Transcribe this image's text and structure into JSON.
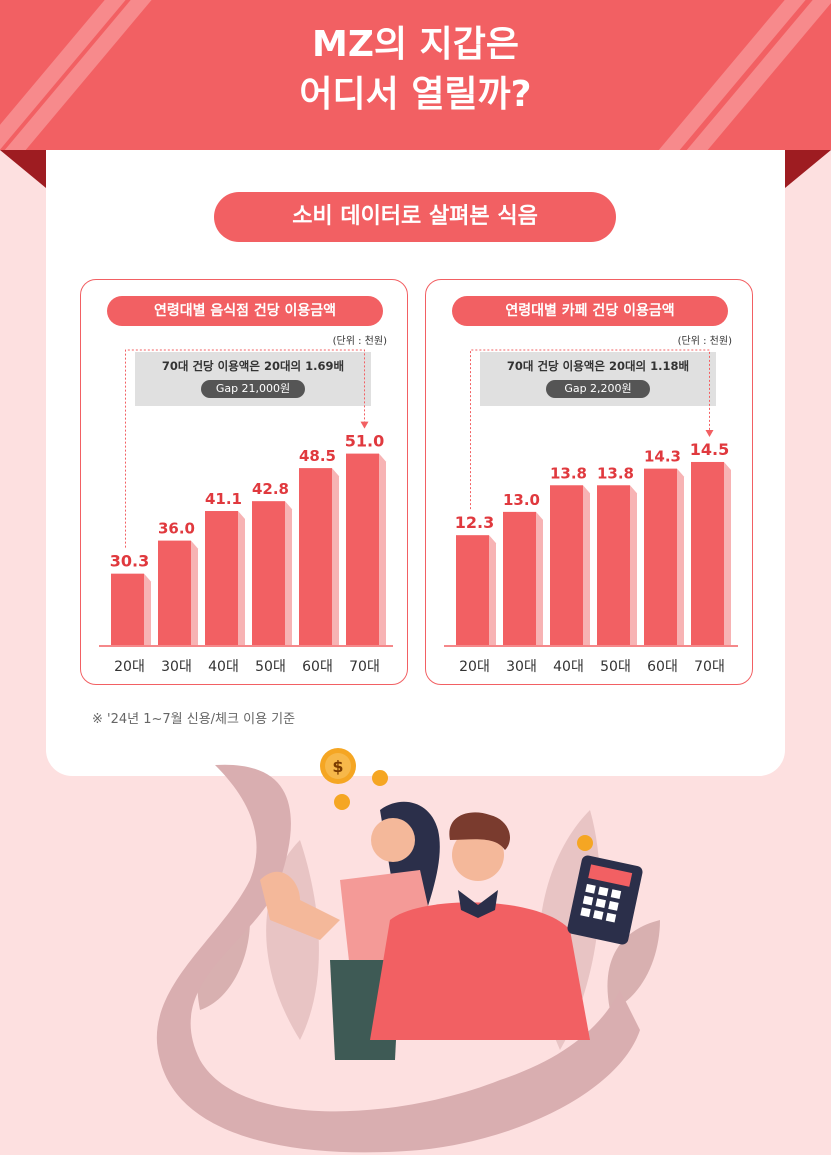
{
  "header": {
    "title_line1": "MZ의 지갑은",
    "title_line2": "어디서 열릴까?"
  },
  "subtitle": "소비 데이터로 살펴본 식음",
  "colors": {
    "primary": "#f26063",
    "dark_fold": "#9e1c21",
    "background": "#fde0e0",
    "label_red": "#e0393e"
  },
  "footnote": "※ '24년 1~7월 신용/체크 이용 기준",
  "chart_data": [
    {
      "type": "bar",
      "title": "연령대별 음식점 건당 이용금액",
      "unit": "(단위 : 천원)",
      "annotation": "70대 건당 이용액은 20대의 1.69배",
      "gap": "Gap 21,000원",
      "categories": [
        "20대",
        "30대",
        "40대",
        "50대",
        "60대",
        "70대"
      ],
      "values": [
        30.3,
        36.0,
        41.1,
        42.8,
        48.5,
        51.0
      ],
      "value_labels": [
        "30.3",
        "36.0",
        "41.1",
        "42.8",
        "48.5",
        "51.0"
      ],
      "highlight": [
        "20대",
        "70대"
      ]
    },
    {
      "type": "bar",
      "title": "연령대별 카페 건당 이용금액",
      "unit": "(단위 : 천원)",
      "annotation": "70대 건당 이용액은 20대의 1.18배",
      "gap": "Gap 2,200원",
      "categories": [
        "20대",
        "30대",
        "40대",
        "50대",
        "60대",
        "70대"
      ],
      "values": [
        12.3,
        13.0,
        13.8,
        13.8,
        14.3,
        14.5
      ],
      "value_labels": [
        "12.3",
        "13.0",
        "13.8",
        "13.8",
        "14.3",
        "14.5"
      ],
      "highlight": [
        "20대",
        "70대"
      ]
    }
  ]
}
